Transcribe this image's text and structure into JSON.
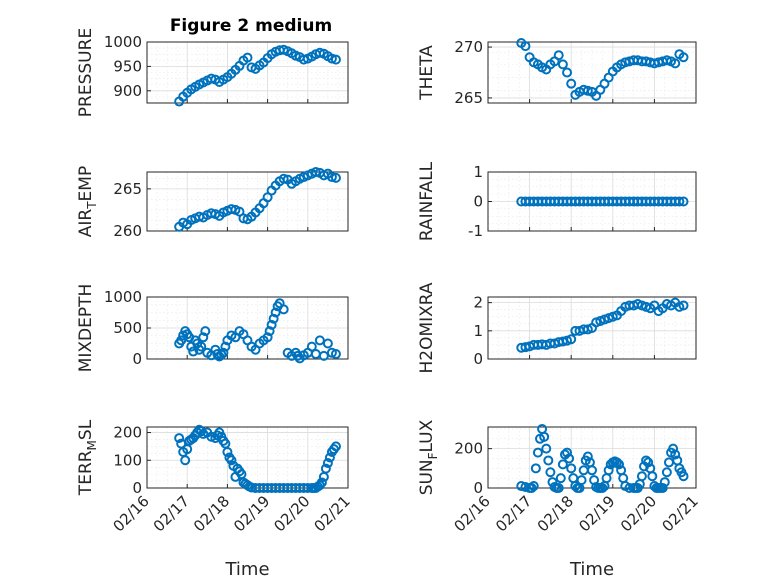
{
  "figure": {
    "title": "Figure 2 medium",
    "marker_color": "#0072BD",
    "x_axis": {
      "label": "Time",
      "ticks": [
        "02/16",
        "02/17",
        "02/18",
        "02/19",
        "02/20",
        "02/21"
      ],
      "range": [
        16,
        21
      ]
    }
  },
  "chart_data": [
    {
      "type": "scatter",
      "id": "pressure",
      "ylabel": "PRESSURE",
      "ylim": [
        875,
        1000
      ],
      "yticks": [
        900,
        950,
        1000
      ],
      "ytick_labels": [
        "900",
        "950",
        "1000"
      ],
      "x": [
        16.8,
        16.9,
        17.0,
        17.1,
        17.2,
        17.3,
        17.4,
        17.5,
        17.6,
        17.7,
        17.8,
        17.9,
        18.0,
        18.1,
        18.2,
        18.3,
        18.4,
        18.5,
        18.6,
        18.7,
        18.8,
        18.9,
        19.0,
        19.1,
        19.2,
        19.3,
        19.4,
        19.5,
        19.6,
        19.7,
        19.8,
        19.9,
        20.0,
        20.1,
        20.2,
        20.3,
        20.4,
        20.5,
        20.6,
        20.7
      ],
      "y": [
        878,
        888,
        896,
        903,
        908,
        913,
        917,
        921,
        925,
        923,
        918,
        923,
        928,
        935,
        943,
        951,
        962,
        968,
        948,
        945,
        952,
        958,
        967,
        975,
        980,
        983,
        984,
        981,
        977,
        972,
        969,
        964,
        966,
        970,
        975,
        978,
        976,
        971,
        966,
        964
      ]
    },
    {
      "type": "scatter",
      "id": "theta",
      "ylabel": "THETA",
      "ylim": [
        264.5,
        270.5
      ],
      "yticks": [
        265,
        270
      ],
      "ytick_labels": [
        "265",
        "270"
      ],
      "x": [
        16.8,
        16.9,
        17.0,
        17.1,
        17.2,
        17.3,
        17.4,
        17.5,
        17.6,
        17.7,
        17.8,
        17.9,
        18.0,
        18.1,
        18.2,
        18.3,
        18.4,
        18.5,
        18.6,
        18.7,
        18.8,
        18.9,
        19.0,
        19.1,
        19.2,
        19.3,
        19.4,
        19.5,
        19.6,
        19.7,
        19.8,
        19.9,
        20.0,
        20.1,
        20.2,
        20.3,
        20.4,
        20.5,
        20.6,
        20.7
      ],
      "y": [
        270.4,
        270.1,
        269.0,
        268.5,
        268.3,
        268.0,
        267.8,
        268.3,
        268.6,
        269.2,
        268.3,
        267.5,
        266.4,
        265.3,
        265.6,
        265.8,
        265.7,
        265.6,
        265.2,
        265.8,
        266.4,
        267.0,
        267.6,
        268.0,
        268.3,
        268.5,
        268.6,
        268.7,
        268.7,
        268.6,
        268.6,
        268.5,
        268.4,
        268.5,
        268.6,
        268.7,
        268.6,
        268.4,
        269.3,
        269.0
      ]
    },
    {
      "type": "scatter",
      "id": "air_temp",
      "ylabel": "AIR_TEMP",
      "ylim": [
        260,
        267
      ],
      "yticks": [
        260,
        265
      ],
      "ytick_labels": [
        "260",
        "265"
      ],
      "x": [
        16.8,
        16.9,
        17.0,
        17.1,
        17.2,
        17.3,
        17.4,
        17.5,
        17.6,
        17.7,
        17.8,
        17.9,
        18.0,
        18.1,
        18.2,
        18.3,
        18.4,
        18.5,
        18.6,
        18.7,
        18.8,
        18.9,
        19.0,
        19.1,
        19.2,
        19.3,
        19.4,
        19.5,
        19.6,
        19.7,
        19.8,
        19.9,
        20.0,
        20.1,
        20.2,
        20.3,
        20.4,
        20.5,
        20.6,
        20.7
      ],
      "y": [
        260.5,
        261.0,
        260.8,
        261.3,
        261.5,
        261.7,
        261.6,
        261.9,
        262.1,
        262.0,
        261.8,
        262.2,
        262.4,
        262.6,
        262.5,
        262.3,
        261.5,
        261.4,
        261.7,
        262.2,
        262.7,
        263.3,
        264.0,
        264.8,
        265.4,
        265.9,
        266.2,
        266.1,
        265.6,
        265.9,
        266.2,
        266.4,
        266.6,
        266.8,
        267.0,
        266.9,
        266.6,
        266.8,
        266.4,
        266.3
      ]
    },
    {
      "type": "scatter",
      "id": "rainfall",
      "ylabel": "RAINFALL",
      "ylim": [
        -1,
        1
      ],
      "yticks": [
        -1,
        0,
        1
      ],
      "ytick_labels": [
        "-1",
        "0",
        "1"
      ],
      "x": [
        16.8,
        16.9,
        17.0,
        17.1,
        17.2,
        17.3,
        17.4,
        17.5,
        17.6,
        17.7,
        17.8,
        17.9,
        18.0,
        18.1,
        18.2,
        18.3,
        18.4,
        18.5,
        18.6,
        18.7,
        18.8,
        18.9,
        19.0,
        19.1,
        19.2,
        19.3,
        19.4,
        19.5,
        19.6,
        19.7,
        19.8,
        19.9,
        20.0,
        20.1,
        20.2,
        20.3,
        20.4,
        20.5,
        20.6,
        20.7
      ],
      "y": [
        0,
        0,
        0,
        0,
        0,
        0,
        0,
        0,
        0,
        0,
        0,
        0,
        0,
        0,
        0,
        0,
        0,
        0,
        0,
        0,
        0,
        0,
        0,
        0,
        0,
        0,
        0,
        0,
        0,
        0,
        0,
        0,
        0,
        0,
        0,
        0,
        0,
        0,
        0,
        0
      ]
    },
    {
      "type": "scatter",
      "id": "mixdepth",
      "ylabel": "MIXDEPTH",
      "ylim": [
        0,
        1000
      ],
      "yticks": [
        0,
        500,
        1000
      ],
      "ytick_labels": [
        "0",
        "500",
        "1000"
      ],
      "x": [
        16.8,
        16.85,
        16.9,
        16.95,
        17.0,
        17.05,
        17.1,
        17.15,
        17.2,
        17.25,
        17.3,
        17.35,
        17.4,
        17.45,
        17.5,
        17.6,
        17.7,
        17.75,
        17.8,
        17.85,
        17.9,
        17.95,
        18.0,
        18.1,
        18.2,
        18.3,
        18.4,
        18.5,
        18.6,
        18.7,
        18.8,
        18.9,
        19.0,
        19.05,
        19.1,
        19.15,
        19.2,
        19.25,
        19.3,
        19.4,
        19.5,
        19.6,
        19.7,
        19.75,
        19.8,
        19.9,
        20.0,
        20.1,
        20.2,
        20.3,
        20.4,
        20.5,
        20.6,
        20.7
      ],
      "y": [
        250,
        300,
        380,
        450,
        400,
        350,
        200,
        120,
        300,
        250,
        150,
        200,
        350,
        450,
        100,
        60,
        150,
        80,
        40,
        70,
        100,
        200,
        300,
        380,
        350,
        450,
        400,
        300,
        200,
        150,
        250,
        300,
        350,
        450,
        550,
        650,
        750,
        850,
        900,
        800,
        100,
        50,
        100,
        50,
        10,
        60,
        100,
        200,
        80,
        300,
        50,
        250,
        100,
        80
      ]
    },
    {
      "type": "scatter",
      "id": "h2omixra",
      "ylabel": "H2OMIXRA",
      "ylim": [
        0,
        2.2
      ],
      "yticks": [
        0,
        1,
        2
      ],
      "ytick_labels": [
        "0",
        "1",
        "2"
      ],
      "x": [
        16.8,
        16.9,
        17.0,
        17.1,
        17.2,
        17.3,
        17.4,
        17.5,
        17.6,
        17.7,
        17.8,
        17.9,
        18.0,
        18.1,
        18.2,
        18.3,
        18.4,
        18.5,
        18.6,
        18.7,
        18.8,
        18.9,
        19.0,
        19.1,
        19.2,
        19.3,
        19.4,
        19.5,
        19.6,
        19.7,
        19.8,
        19.9,
        20.0,
        20.1,
        20.2,
        20.3,
        20.4,
        20.5,
        20.6,
        20.7
      ],
      "y": [
        0.4,
        0.42,
        0.45,
        0.5,
        0.5,
        0.52,
        0.5,
        0.55,
        0.55,
        0.6,
        0.62,
        0.65,
        0.7,
        1.0,
        1.0,
        1.05,
        1.05,
        1.1,
        1.3,
        1.35,
        1.4,
        1.45,
        1.5,
        1.55,
        1.7,
        1.85,
        1.9,
        1.9,
        1.95,
        1.9,
        1.85,
        1.8,
        1.9,
        1.7,
        1.8,
        1.95,
        1.9,
        2.0,
        1.85,
        1.9
      ]
    },
    {
      "type": "scatter",
      "id": "terr_msl",
      "ylabel": "TERR_MSL",
      "ylim": [
        0,
        220
      ],
      "yticks": [
        0,
        100,
        200
      ],
      "ytick_labels": [
        "0",
        "100",
        "200"
      ],
      "x": [
        16.8,
        16.85,
        16.9,
        16.95,
        17.0,
        17.05,
        17.1,
        17.15,
        17.2,
        17.25,
        17.3,
        17.35,
        17.4,
        17.5,
        17.6,
        17.7,
        17.75,
        17.8,
        17.85,
        17.9,
        17.95,
        18.0,
        18.05,
        18.1,
        18.15,
        18.2,
        18.25,
        18.3,
        18.35,
        18.4,
        18.45,
        18.5,
        18.55,
        18.6,
        18.7,
        18.8,
        18.9,
        19.0,
        19.1,
        19.2,
        19.3,
        19.4,
        19.5,
        19.6,
        19.7,
        19.8,
        19.9,
        20.0,
        20.1,
        20.15,
        20.2,
        20.25,
        20.3,
        20.35,
        20.4,
        20.45,
        20.5,
        20.55,
        20.6,
        20.65,
        20.7
      ],
      "y": [
        180,
        160,
        130,
        100,
        140,
        170,
        175,
        180,
        190,
        200,
        210,
        205,
        195,
        200,
        185,
        180,
        190,
        200,
        185,
        170,
        160,
        130,
        110,
        100,
        80,
        40,
        70,
        60,
        50,
        20,
        15,
        10,
        5,
        2,
        0,
        0,
        0,
        0,
        0,
        0,
        0,
        0,
        0,
        0,
        0,
        0,
        0,
        0,
        0,
        0,
        0,
        5,
        10,
        20,
        40,
        70,
        90,
        110,
        130,
        140,
        150
      ]
    },
    {
      "type": "scatter",
      "id": "sunflux",
      "ylabel": "SUN_FLUX",
      "ylim": [
        0,
        310
      ],
      "yticks": [
        0,
        200
      ],
      "ytick_labels": [
        "0",
        "200"
      ],
      "x": [
        16.8,
        16.9,
        17.0,
        17.05,
        17.1,
        17.15,
        17.2,
        17.25,
        17.3,
        17.35,
        17.4,
        17.45,
        17.5,
        17.55,
        17.6,
        17.65,
        17.7,
        17.75,
        17.8,
        17.85,
        17.9,
        17.95,
        18.0,
        18.05,
        18.1,
        18.15,
        18.2,
        18.25,
        18.3,
        18.35,
        18.4,
        18.45,
        18.5,
        18.55,
        18.6,
        18.65,
        18.7,
        18.75,
        18.8,
        18.85,
        18.9,
        18.95,
        19.0,
        19.05,
        19.1,
        19.15,
        19.2,
        19.25,
        19.3,
        19.4,
        19.5,
        19.55,
        19.6,
        19.65,
        19.7,
        19.75,
        19.8,
        19.85,
        19.9,
        19.95,
        20.0,
        20.05,
        20.1,
        20.15,
        20.2,
        20.25,
        20.3,
        20.35,
        20.4,
        20.45,
        20.5,
        20.55,
        20.6,
        20.65,
        20.7
      ],
      "y": [
        10,
        5,
        0,
        0,
        10,
        100,
        180,
        250,
        300,
        260,
        200,
        140,
        80,
        30,
        5,
        0,
        0,
        50,
        120,
        170,
        180,
        150,
        100,
        50,
        10,
        0,
        0,
        40,
        90,
        140,
        160,
        130,
        90,
        40,
        5,
        0,
        0,
        0,
        10,
        50,
        90,
        120,
        130,
        135,
        130,
        120,
        90,
        50,
        10,
        0,
        0,
        0,
        0,
        20,
        60,
        110,
        140,
        130,
        100,
        60,
        10,
        0,
        0,
        0,
        0,
        30,
        80,
        130,
        180,
        200,
        170,
        140,
        100,
        80,
        60
      ]
    }
  ]
}
